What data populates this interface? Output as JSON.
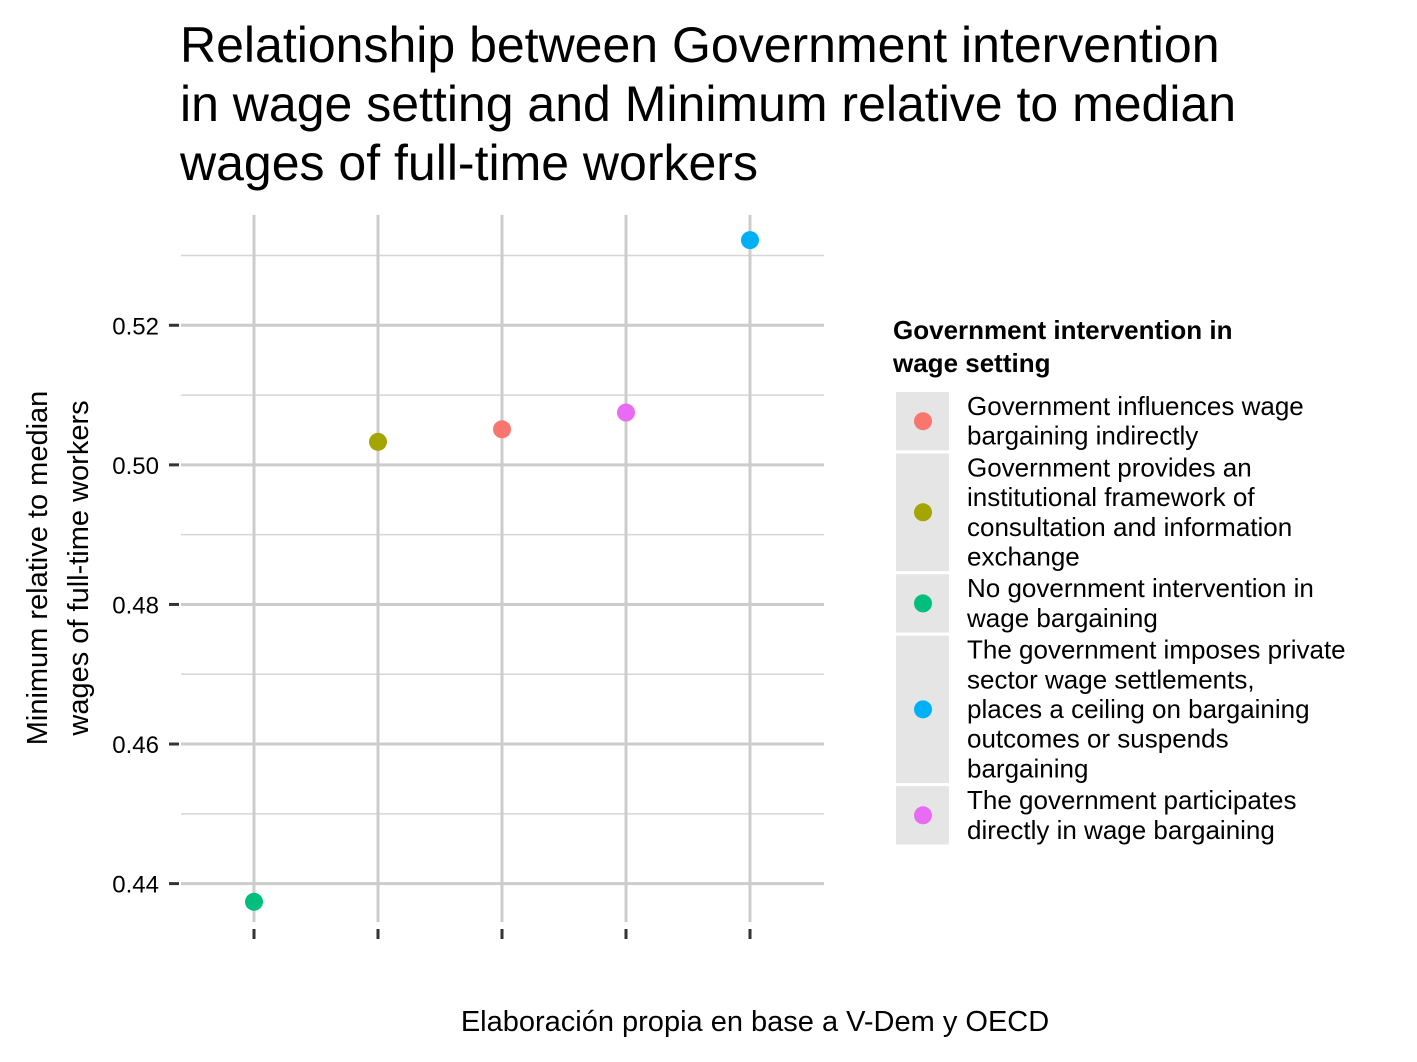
{
  "chart_data": {
    "type": "scatter",
    "title": "Relationship between Government intervention in wage setting and Minimum relative to median wages of full-time workers",
    "title_lines": [
      "Relationship between Government intervention",
      "in wage setting and Minimum relative to median",
      "wages of full-time workers"
    ],
    "xlabel": "Elaboración propia en base a V-Dem y OECD",
    "ylabel": "Minimum relative to median wages of full-time workers",
    "ylabel_lines": [
      "Minimum relative to median",
      "wages of full-time workers"
    ],
    "x_tick_labels": [
      "",
      "",
      "",
      "",
      ""
    ],
    "y_ticks": [
      0.44,
      0.46,
      0.48,
      0.5,
      0.52
    ],
    "y_tick_labels": [
      "0.44",
      "0.46",
      "0.48",
      "0.50",
      "0.52"
    ],
    "ylim": [
      0.4345,
      0.5358
    ],
    "grid": true,
    "legend_position": "right",
    "legend_title_lines": [
      "Government intervention in",
      "wage setting"
    ],
    "categories": [
      {
        "name": "Government influences wage bargaining indirectly",
        "lines": [
          "Government influences wage",
          "bargaining indirectly"
        ],
        "color": "#F8766D"
      },
      {
        "name": "Government provides an institutional framework of consultation and information exchange",
        "lines": [
          "Government provides an",
          "institutional framework of",
          "consultation and information",
          "exchange"
        ],
        "color": "#A3A500"
      },
      {
        "name": "No government intervention in wage bargaining",
        "lines": [
          "No government intervention in",
          "wage bargaining"
        ],
        "color": "#00BF7D"
      },
      {
        "name": "The government imposes private sector wage settlements, places a ceiling on bargaining outcomes or suspends bargaining",
        "lines": [
          "The government imposes private",
          "sector wage settlements,",
          "places a ceiling on bargaining",
          "outcomes or suspends",
          "bargaining"
        ],
        "color": "#00B0F6"
      },
      {
        "name": "The government participates directly in wage bargaining",
        "lines": [
          "The government participates",
          "directly in wage bargaining"
        ],
        "color": "#E76BF3"
      }
    ],
    "points": [
      {
        "x": 1,
        "y": 0.4374,
        "category": "No government intervention in wage bargaining"
      },
      {
        "x": 2,
        "y": 0.5033,
        "category": "Government provides an institutional framework of consultation and information exchange"
      },
      {
        "x": 3,
        "y": 0.5051,
        "category": "Government influences wage bargaining indirectly"
      },
      {
        "x": 4,
        "y": 0.5075,
        "category": "The government participates directly in wage bargaining"
      },
      {
        "x": 5,
        "y": 0.5322,
        "category": "The government imposes private sector wage settlements, places a ceiling on bargaining outcomes or suspends bargaining"
      }
    ]
  }
}
